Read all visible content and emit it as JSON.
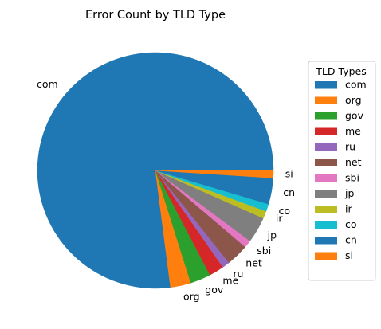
{
  "chart_data": {
    "type": "pie",
    "title": "Error Count by TLD Type",
    "legend_title": "TLD Types",
    "legend_position": "right",
    "start_angle_deg": 0,
    "direction": "counterclockwise",
    "slices": [
      {
        "label": "com",
        "value": 302,
        "color": "#1f77b4"
      },
      {
        "label": "org",
        "value": 11,
        "color": "#ff7f0e"
      },
      {
        "label": "gov",
        "value": 11,
        "color": "#2ca02c"
      },
      {
        "label": "me",
        "value": 8,
        "color": "#d62728"
      },
      {
        "label": "ru",
        "value": 4,
        "color": "#9467bd"
      },
      {
        "label": "net",
        "value": 12,
        "color": "#8c564b"
      },
      {
        "label": "sbi",
        "value": 4,
        "color": "#e377c2"
      },
      {
        "label": "jp",
        "value": 14,
        "color": "#7f7f7f"
      },
      {
        "label": "ir",
        "value": 4,
        "color": "#bcbd22"
      },
      {
        "label": "co",
        "value": 4,
        "color": "#17becf"
      },
      {
        "label": "cn",
        "value": 14,
        "color": "#1f77b4"
      },
      {
        "label": "si",
        "value": 4,
        "color": "#ff7f0e"
      }
    ]
  }
}
